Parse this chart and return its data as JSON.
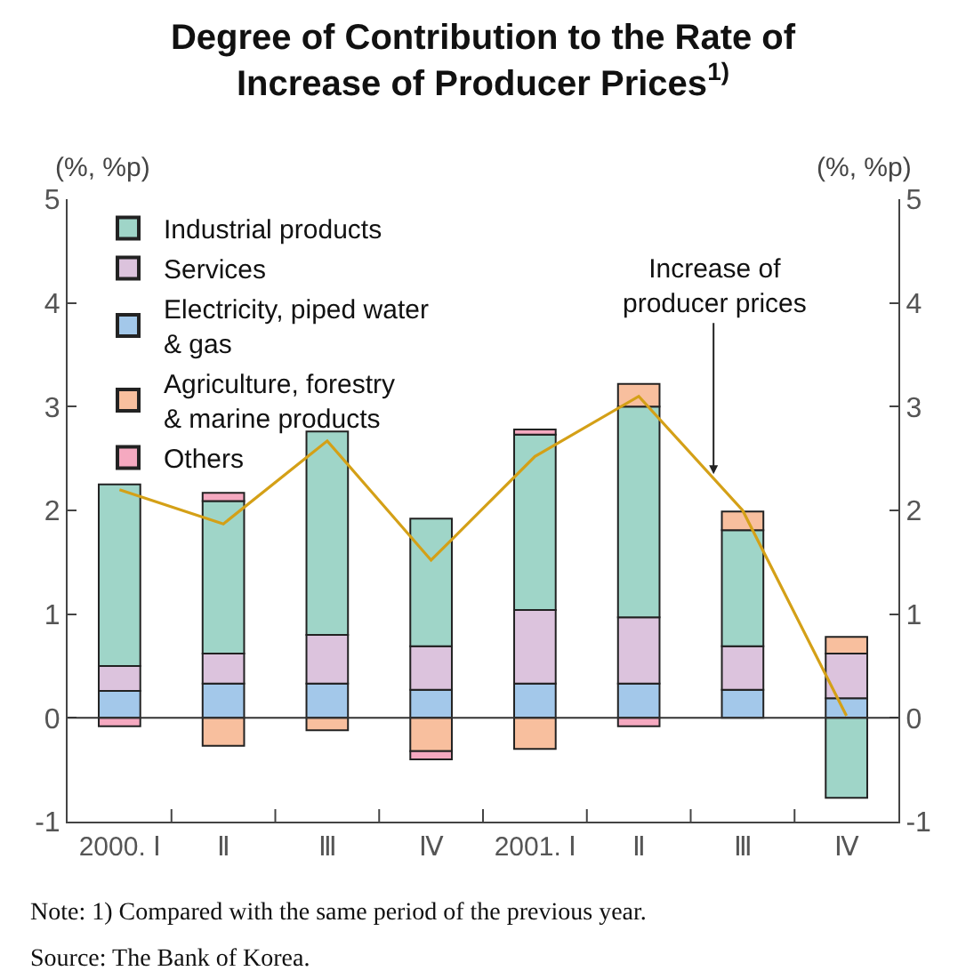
{
  "chart_data": {
    "type": "bar",
    "stacked": true,
    "title": "Degree of Contribution to the Rate of\nIncrease of Producer Prices$^{1)}$",
    "ylabel": "(%, %p)",
    "y2label": "(%, %p)",
    "categories": [
      "2000. Ⅰ",
      "Ⅱ",
      "Ⅲ",
      "Ⅳ",
      "2001. Ⅰ",
      "Ⅱ",
      "Ⅲ",
      "Ⅳ"
    ],
    "series": [
      {
        "name": "Electricity, piped water\n& gas",
        "color": "#a3c8ea",
        "values": [
          0.26,
          0.33,
          0.33,
          0.27,
          0.33,
          0.33,
          0.27,
          0.19
        ]
      },
      {
        "name": "Services",
        "color": "#dcc3dd",
        "values": [
          0.24,
          0.29,
          0.47,
          0.42,
          0.71,
          0.64,
          0.42,
          0.43
        ]
      },
      {
        "name": "Industrial products",
        "color": "#9fd5c8",
        "values": [
          1.75,
          1.47,
          1.96,
          1.23,
          1.69,
          2.03,
          1.12,
          -0.77
        ]
      },
      {
        "name": "Agriculture, forestry\n& marine products",
        "color": "#f8bf9e",
        "values": [
          null,
          -0.27,
          -0.12,
          -0.32,
          -0.3,
          0.22,
          0.18,
          0.16
        ]
      },
      {
        "name": "Others",
        "color": "#f5a9c0",
        "values": [
          -0.08,
          0.08,
          null,
          -0.08,
          0.05,
          -0.08,
          null,
          null
        ]
      },
      {
        "type": "line",
        "color": "#d4a017",
        "values": [
          2.2,
          1.87,
          2.67,
          1.52,
          2.52,
          3.1,
          2.0,
          0.02
        ]
      }
    ],
    "ylim": [
      -1,
      5
    ],
    "yticks": [
      -1,
      0,
      1,
      2,
      3,
      4,
      5
    ],
    "y2lim": [
      -1,
      5
    ],
    "y2ticks": [
      -1,
      0,
      1,
      2,
      3,
      4,
      5
    ],
    "legend": "top left",
    "marker": "none",
    "ref_lines": [
      {
        "axis": "y",
        "value": 0,
        "color": "#333333"
      }
    ],
    "annotations": [
      {
        "text": "Increase of\nproducer prices",
        "y": 2.35
      },
      "Note: 1) Compared with the same period of the previous year.",
      "Source: The Bank of Korea."
    ]
  }
}
